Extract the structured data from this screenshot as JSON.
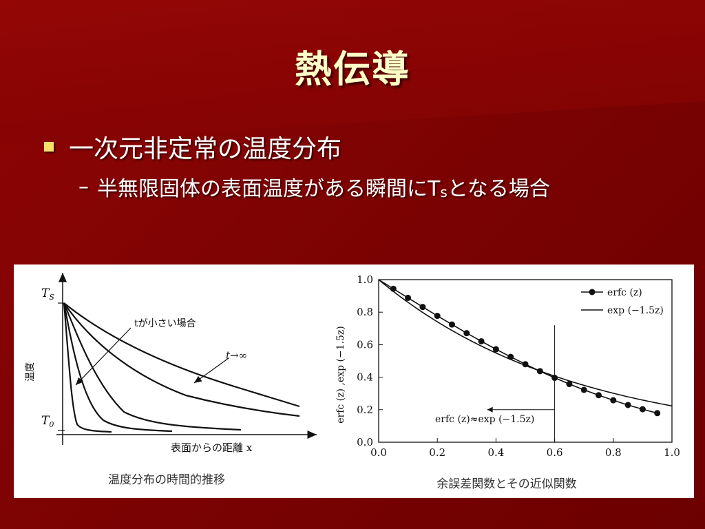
{
  "slide": {
    "title": "熱伝導",
    "bullet1": "一次元非定常の温度分布",
    "bullet2_dash": "–",
    "bullet2_main": "半無限固体の表面温度がある瞬間にT",
    "bullet2_sub": "s",
    "bullet2_tail": "となる場合"
  },
  "colors": {
    "background": "#800000",
    "title": "#ffffc8",
    "bullet": "#f6e068"
  },
  "left_figure": {
    "caption": "温度分布の時間的推移",
    "ylabel": "温度",
    "xlabel": "表面からの距離 x",
    "ts_label": "T",
    "ts_sub": "S",
    "t0_label": "T",
    "t0_sub": "0",
    "ann_small": "tが小さい場合",
    "ann_inf": "t→∞"
  },
  "chart_data": {
    "type": "line",
    "title": "",
    "caption": "余誤差関数とその近似関数",
    "ylabel": "erfc (z) ,exp (−1.5z)",
    "xlabel": "",
    "xlim": [
      0.0,
      1.0
    ],
    "ylim": [
      0.0,
      1.0
    ],
    "xticks": [
      "0.0",
      "0.2",
      "0.4",
      "0.6",
      "0.8",
      "1.0"
    ],
    "yticks": [
      "0.0",
      "0.2",
      "0.4",
      "0.6",
      "0.8",
      "1.0"
    ],
    "legend_position": "top-right",
    "legend": [
      "erfc (z)",
      "exp (−1.5z)"
    ],
    "annotation": "erfc (z)≈exp (−1.5z)",
    "marker_x": 0.6,
    "series": [
      {
        "name": "erfc (z)",
        "x": [
          0.05,
          0.1,
          0.15,
          0.2,
          0.25,
          0.3,
          0.35,
          0.4,
          0.45,
          0.5,
          0.55,
          0.6,
          0.65,
          0.7,
          0.75,
          0.8,
          0.85,
          0.9,
          0.95
        ],
        "values": [
          0.944,
          0.888,
          0.832,
          0.777,
          0.724,
          0.671,
          0.621,
          0.572,
          0.525,
          0.48,
          0.437,
          0.396,
          0.358,
          0.322,
          0.289,
          0.258,
          0.229,
          0.203,
          0.179
        ]
      },
      {
        "name": "exp (−1.5z)",
        "x": [
          0.0,
          0.1,
          0.2,
          0.3,
          0.4,
          0.5,
          0.6,
          0.7,
          0.8,
          0.9,
          1.0
        ],
        "values": [
          1.0,
          0.861,
          0.741,
          0.638,
          0.549,
          0.472,
          0.407,
          0.35,
          0.301,
          0.259,
          0.223
        ]
      }
    ]
  }
}
